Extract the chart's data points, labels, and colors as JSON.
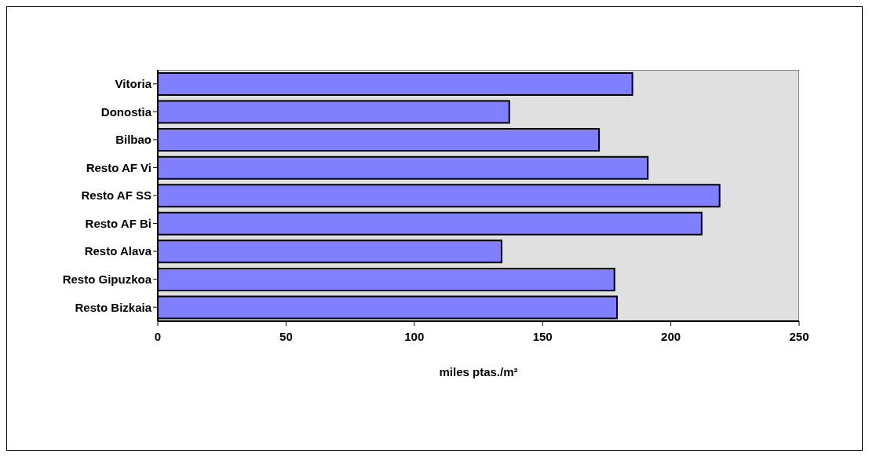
{
  "chart_data": {
    "type": "bar",
    "orientation": "horizontal",
    "xlabel": "miles ptas./m²",
    "categories": [
      "Vitoria",
      "Donostia",
      "Bilbao",
      "Resto AF Vi",
      "Resto AF SS",
      "Resto AF Bi",
      "Resto Alava",
      "Resto Gipuzkoa",
      "Resto Bizkaia"
    ],
    "values": [
      185,
      137,
      172,
      191,
      219,
      212,
      134,
      178,
      179
    ],
    "color": "#8080ff",
    "xlim": [
      0,
      250
    ],
    "xticks": [
      0,
      50,
      100,
      150,
      200,
      250
    ]
  }
}
